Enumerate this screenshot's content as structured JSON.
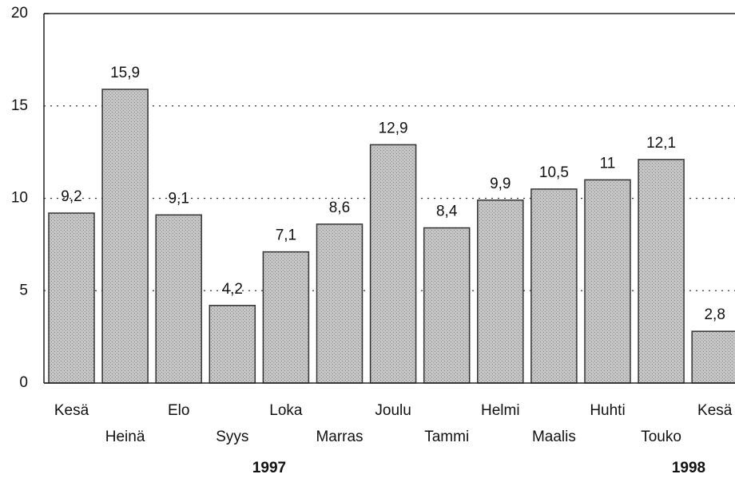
{
  "chart_data": {
    "type": "bar",
    "categories": [
      "Kesä",
      "Heinä",
      "Elo",
      "Syys",
      "Loka",
      "Marras",
      "Joulu",
      "Tammi",
      "Helmi",
      "Maalis",
      "Huhti",
      "Touko",
      "Kesä"
    ],
    "values": [
      9.2,
      15.9,
      9.1,
      4.2,
      7.1,
      8.6,
      12.9,
      8.4,
      9.9,
      10.5,
      11,
      12.1,
      2.8
    ],
    "value_labels": [
      "9,2",
      "15,9",
      "9,1",
      "4,2",
      "7,1",
      "8,6",
      "12,9",
      "8,4",
      "9,9",
      "10,5",
      "11",
      "12,1",
      "2,8"
    ],
    "year_labels": [
      "1997",
      "1998"
    ],
    "color": "#b9b9b9",
    "ylim": [
      0,
      20
    ],
    "yticks": [
      0,
      5,
      10,
      15,
      20
    ],
    "grid": true
  }
}
